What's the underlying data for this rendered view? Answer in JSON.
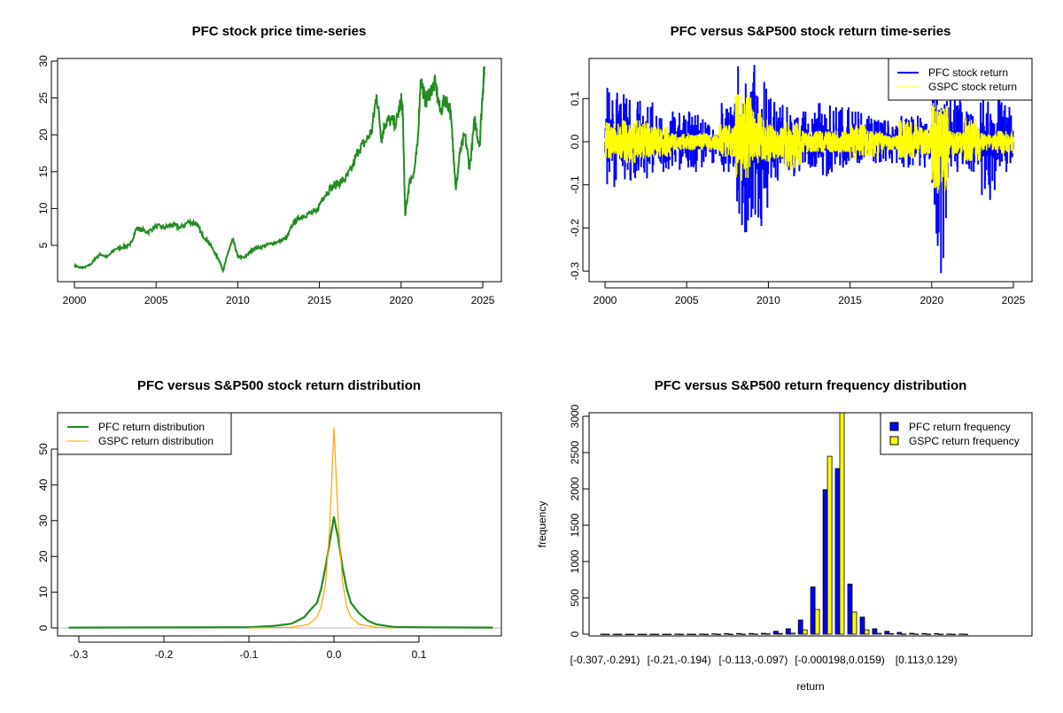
{
  "chart_data": [
    {
      "type": "line",
      "title": "PFC stock price time-series",
      "xlabel": "",
      "ylabel": "",
      "xlim": [
        1999.6,
        2025.5
      ],
      "ylim": [
        1.2,
        30.3
      ],
      "x_ticks": [
        "2000",
        "2005",
        "2010",
        "2015",
        "2020",
        "2025"
      ],
      "y_ticks": [
        "5",
        "10",
        "15",
        "20",
        "25",
        "30"
      ],
      "color": "#228B22",
      "series": [
        {
          "x": [
            2000.0,
            2000.3,
            2000.6,
            2001.0,
            2001.3,
            2001.6,
            2002.0,
            2002.5,
            2003.0,
            2003.4,
            2003.8,
            2004.0,
            2004.5,
            2005.0,
            2005.5,
            2006.0,
            2006.5,
            2007.0,
            2007.5,
            2007.8,
            2008.2,
            2008.6,
            2008.9,
            2009.1,
            2009.4,
            2009.7,
            2010.0,
            2010.4,
            2010.7,
            2011.0,
            2011.5,
            2012.0,
            2012.5,
            2013.0,
            2013.4,
            2013.8,
            2014.3,
            2014.8,
            2015.2,
            2015.7,
            2016.2,
            2016.6,
            2017.0,
            2017.4,
            2017.8,
            2018.2,
            2018.5,
            2018.8,
            2019.0,
            2019.3,
            2019.7,
            2020.0,
            2020.1,
            2020.25,
            2020.5,
            2020.8,
            2021.0,
            2021.2,
            2021.5,
            2021.8,
            2022.1,
            2022.4,
            2022.7,
            2023.0,
            2023.2,
            2023.35,
            2023.6,
            2023.9,
            2024.2,
            2024.5,
            2024.8,
            2025.0,
            2025.1
          ],
          "y": [
            2.3,
            2.0,
            2.0,
            2.4,
            3.3,
            3.8,
            3.4,
            4.5,
            4.8,
            5.0,
            7.3,
            7.2,
            6.8,
            7.6,
            7.4,
            7.8,
            7.4,
            8.2,
            7.9,
            6.5,
            5.5,
            4.0,
            2.8,
            1.5,
            4.0,
            5.8,
            3.5,
            3.3,
            4.0,
            4.6,
            4.8,
            5.2,
            5.5,
            6.0,
            8.0,
            8.8,
            9.3,
            9.5,
            11.5,
            12.8,
            13.5,
            14.0,
            15.5,
            18.0,
            19.0,
            20.5,
            25.5,
            19.5,
            21.5,
            22.0,
            21.5,
            24.8,
            23.0,
            9.0,
            13.5,
            15.0,
            18.5,
            27.5,
            24.5,
            26.0,
            27.0,
            23.0,
            25.0,
            23.5,
            18.0,
            12.5,
            17.5,
            20.0,
            15.5,
            22.0,
            18.5,
            26.0,
            29.3
          ]
        }
      ]
    },
    {
      "type": "line",
      "title": "PFC versus S&P500 stock return time-series",
      "xlabel": "",
      "ylabel": "",
      "xlim": [
        1999.6,
        2025.5
      ],
      "ylim": [
        -0.31,
        0.185
      ],
      "x_ticks": [
        "2000",
        "2005",
        "2010",
        "2015",
        "2020",
        "2025"
      ],
      "y_ticks": [
        "-0.3",
        "-0.2",
        "-0.1",
        "0.0",
        "0.1"
      ],
      "legend": {
        "position": "top-right",
        "entries": [
          "PFC stock return",
          "GSPC stock return"
        ]
      },
      "series": [
        {
          "name": "PFC stock return",
          "color": "#0000FF",
          "years": [
            2000,
            2001,
            2002,
            2003,
            2004,
            2005,
            2006,
            2007,
            2008,
            2009,
            2010,
            2011,
            2012,
            2013,
            2014,
            2015,
            2016,
            2017,
            2018,
            2019,
            2020,
            2021,
            2022,
            2023,
            2024
          ],
          "yearly_min": [
            -0.105,
            -0.09,
            -0.085,
            -0.07,
            -0.065,
            -0.07,
            -0.05,
            -0.07,
            -0.21,
            -0.195,
            -0.09,
            -0.08,
            -0.06,
            -0.08,
            -0.06,
            -0.05,
            -0.05,
            -0.05,
            -0.06,
            -0.06,
            -0.305,
            -0.07,
            -0.07,
            -0.135,
            -0.07
          ],
          "yearly_max": [
            0.125,
            0.11,
            0.095,
            0.06,
            0.07,
            0.07,
            0.045,
            0.09,
            0.175,
            0.178,
            0.1,
            0.08,
            0.07,
            0.09,
            0.08,
            0.07,
            0.06,
            0.05,
            0.06,
            0.06,
            0.1,
            0.1,
            0.07,
            0.1,
            0.1
          ]
        },
        {
          "name": "GSPC stock return",
          "color": "#FFFF00",
          "years": [
            2000,
            2001,
            2002,
            2003,
            2004,
            2005,
            2006,
            2007,
            2008,
            2009,
            2010,
            2011,
            2012,
            2013,
            2014,
            2015,
            2016,
            2017,
            2018,
            2019,
            2020,
            2021,
            2022,
            2023,
            2024
          ],
          "yearly_min": [
            -0.04,
            -0.05,
            -0.04,
            -0.035,
            -0.02,
            -0.02,
            -0.02,
            -0.035,
            -0.09,
            -0.05,
            -0.04,
            -0.065,
            -0.025,
            -0.025,
            -0.025,
            -0.04,
            -0.035,
            -0.02,
            -0.04,
            -0.03,
            -0.12,
            -0.03,
            -0.045,
            -0.02,
            -0.03
          ],
          "yearly_max": [
            0.045,
            0.05,
            0.05,
            0.035,
            0.02,
            0.02,
            0.02,
            0.04,
            0.11,
            0.07,
            0.04,
            0.045,
            0.025,
            0.025,
            0.025,
            0.04,
            0.025,
            0.015,
            0.05,
            0.035,
            0.09,
            0.025,
            0.055,
            0.02,
            0.025
          ]
        }
      ]
    },
    {
      "type": "line",
      "title": "PFC versus S&P500 stock return distribution",
      "xlabel": "",
      "ylabel": "",
      "xlim": [
        -0.325,
        0.197
      ],
      "ylim": [
        -2,
        58
      ],
      "x_ticks": [
        "-0.3",
        "-0.2",
        "-0.1",
        "0.0",
        "0.1"
      ],
      "y_ticks": [
        "0",
        "10",
        "20",
        "30",
        "40",
        "50"
      ],
      "legend": {
        "position": "top-left",
        "entries": [
          "PFC return distribution",
          "GSPC return distribution"
        ]
      },
      "baseline_color": "#BEBEBE",
      "series": [
        {
          "name": "PFC return distribution",
          "color": "#228B22",
          "x": [
            -0.312,
            -0.1,
            -0.07,
            -0.05,
            -0.035,
            -0.028,
            -0.02,
            -0.015,
            -0.01,
            -0.005,
            0.0,
            0.005,
            0.01,
            0.015,
            0.02,
            0.03,
            0.04,
            0.05,
            0.07,
            0.1,
            0.187
          ],
          "y": [
            0.1,
            0.2,
            0.6,
            1.2,
            3.0,
            5.0,
            7.0,
            11.0,
            17.0,
            24.0,
            31.0,
            25.0,
            17.0,
            11.0,
            7.0,
            4.0,
            2.0,
            1.0,
            0.3,
            0.2,
            0.1
          ]
        },
        {
          "name": "GSPC return distribution",
          "color": "#FFA500",
          "x": [
            -0.1,
            -0.05,
            -0.03,
            -0.02,
            -0.015,
            -0.01,
            -0.005,
            0.0,
            0.005,
            0.01,
            0.015,
            0.02,
            0.03,
            0.05,
            0.07
          ],
          "y": [
            0.0,
            0.2,
            1.0,
            3.0,
            6.0,
            12.0,
            28.0,
            56.0,
            30.0,
            13.0,
            6.0,
            3.0,
            1.0,
            0.2,
            0.0
          ]
        }
      ]
    },
    {
      "type": "bar",
      "title": "PFC versus S&P500 return frequency distribution",
      "xlabel": "return",
      "ylabel": "frequency",
      "ylim": [
        0,
        3100
      ],
      "y_ticks": [
        "0",
        "500",
        "1000",
        "1500",
        "2000",
        "2500",
        "3000"
      ],
      "categories": [
        "[-0.307,-0.291)",
        "",
        "",
        "",
        "",
        "",
        "[-0.21,-0.194)",
        "",
        "",
        "",
        "",
        "",
        "[-0.113,-0.097)",
        "",
        "",
        "",
        "",
        "",
        "",
        "[-0.000198,0.0159)",
        "",
        "",
        "",
        "",
        "",
        "",
        "[0.113,0.129)",
        "",
        "",
        ""
      ],
      "legend": {
        "position": "top-right",
        "entries": [
          "PFC return frequency",
          "GSPC return frequency"
        ]
      },
      "series": [
        {
          "name": "PFC return frequency",
          "color": "#0000FF",
          "values": [
            1,
            0,
            0,
            0,
            0,
            0,
            2,
            1,
            2,
            5,
            8,
            10,
            10,
            12,
            40,
            75,
            195,
            650,
            1990,
            2280,
            690,
            235,
            75,
            40,
            25,
            12,
            10,
            8,
            3,
            2
          ]
        },
        {
          "name": "GSPC return frequency",
          "color": "#FFFF00",
          "values": [
            0,
            0,
            0,
            0,
            0,
            0,
            0,
            0,
            0,
            0,
            0,
            1,
            3,
            5,
            10,
            15,
            60,
            340,
            2450,
            3300,
            305,
            60,
            12,
            8,
            3,
            2,
            1,
            0,
            0,
            0
          ]
        }
      ]
    }
  ]
}
